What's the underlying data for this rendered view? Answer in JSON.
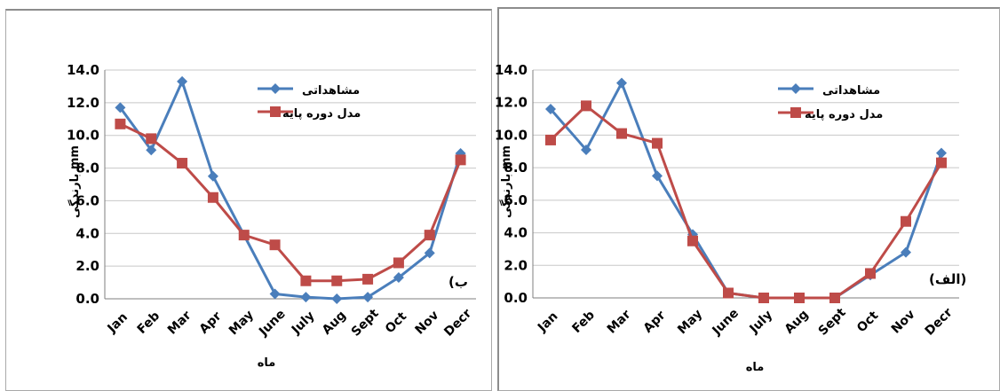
{
  "colors": {
    "observed": "#4a7ebb",
    "model": "#be4b48"
  },
  "chart_data": [
    {
      "type": "line",
      "panel_label": "(ب",
      "categories": [
        "Jan",
        "Feb",
        "Mar",
        "Apr",
        "May",
        "June",
        "July",
        "Aug",
        "Sept",
        "Oct",
        "Nov",
        "Decr"
      ],
      "series": [
        {
          "name": "مشاهداتی",
          "values": [
            11.7,
            9.1,
            13.3,
            7.5,
            3.9,
            0.3,
            0.1,
            0.0,
            0.1,
            1.3,
            2.8,
            8.9
          ]
        },
        {
          "name": "مدل دوره پایه",
          "values": [
            10.7,
            9.8,
            8.3,
            6.2,
            3.9,
            3.3,
            1.1,
            1.1,
            1.2,
            2.2,
            3.9,
            8.5
          ]
        }
      ],
      "xlabel": "ماه",
      "ylabel": "بارندگی mm",
      "ylim": [
        0,
        14
      ],
      "yticks": [
        "0.0",
        "2.0",
        "4.0",
        "6.0",
        "8.0",
        "10.0",
        "12.0",
        "14.0"
      ],
      "grid": true,
      "legend": "top-right"
    },
    {
      "type": "line",
      "panel_label": "(الف)",
      "categories": [
        "Jan",
        "Feb",
        "Mar",
        "Apr",
        "May",
        "June",
        "July",
        "Aug",
        "Sept",
        "Oct",
        "Nov",
        "Decr"
      ],
      "series": [
        {
          "name": "مشاهداتی",
          "values": [
            11.6,
            9.1,
            13.2,
            7.5,
            3.9,
            0.3,
            0.0,
            0.0,
            0.0,
            1.4,
            2.8,
            8.9
          ]
        },
        {
          "name": "مدل دوره پایه",
          "values": [
            9.7,
            11.8,
            10.1,
            9.5,
            3.5,
            0.3,
            0.0,
            0.0,
            0.0,
            1.5,
            4.7,
            8.3
          ]
        }
      ],
      "xlabel": "ماه",
      "ylabel": "بارندگی mm",
      "ylim": [
        0,
        14
      ],
      "yticks": [
        "0.0",
        "2.0",
        "4.0",
        "6.0",
        "8.0",
        "10.0",
        "12.0",
        "14.0"
      ],
      "grid": true,
      "legend": "top-right"
    }
  ]
}
